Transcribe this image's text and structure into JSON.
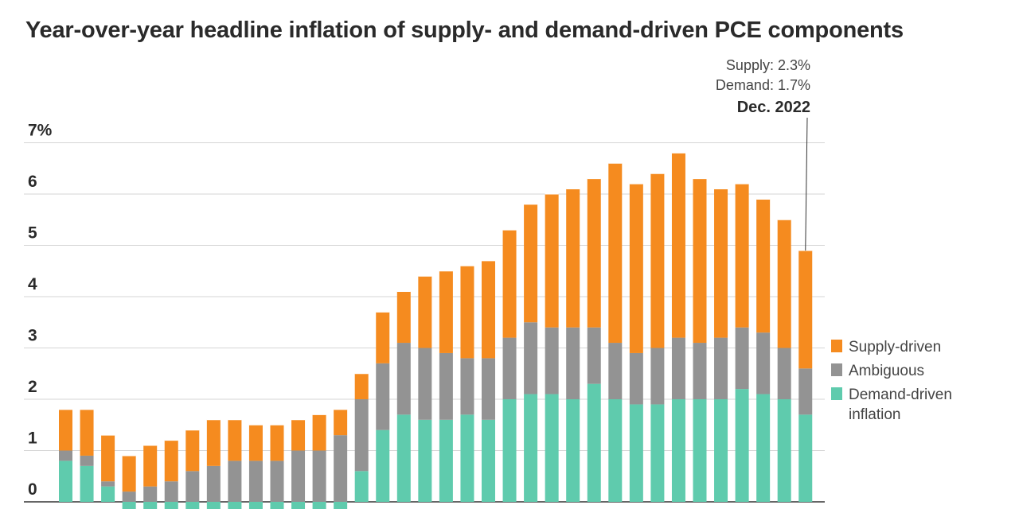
{
  "chart_data": {
    "type": "bar",
    "stacked": true,
    "title": "Year-over-year headline inflation of supply- and demand-driven PCE components",
    "ylim": [
      -0.2,
      7
    ],
    "yticks": [
      0,
      1,
      2,
      3,
      4,
      5,
      6,
      7
    ],
    "ytick_labels": [
      "0",
      "1",
      "2",
      "3",
      "4",
      "5",
      "6",
      "7%"
    ],
    "grid": true,
    "legend_position": "right",
    "series": [
      {
        "name": "Demand-driven inflation",
        "legend_label": [
          "Demand-driven",
          "inflation"
        ],
        "color": "#5fcbad",
        "values": [
          0.8,
          0.7,
          0.3,
          -0.2,
          -0.2,
          -0.2,
          -0.2,
          -0.2,
          -0.2,
          -0.2,
          -0.2,
          -0.2,
          -0.2,
          -0.2,
          0.6,
          1.4,
          1.7,
          1.6,
          1.6,
          1.7,
          1.6,
          2.0,
          2.1,
          2.1,
          2.0,
          2.3,
          2.0,
          1.9,
          1.9,
          2.0,
          2.0,
          2.0,
          2.2,
          2.1,
          2.0,
          1.7
        ]
      },
      {
        "name": "Ambiguous",
        "color": "#939393",
        "values": [
          0.2,
          0.2,
          0.1,
          0.2,
          0.3,
          0.4,
          0.6,
          0.7,
          0.8,
          0.8,
          0.8,
          1.0,
          1.0,
          1.3,
          1.4,
          1.3,
          1.4,
          1.4,
          1.3,
          1.1,
          1.2,
          1.2,
          1.4,
          1.3,
          1.4,
          1.1,
          1.1,
          1.0,
          1.1,
          1.2,
          1.1,
          1.2,
          1.2,
          1.2,
          1.0,
          0.9
        ]
      },
      {
        "name": "Supply-driven",
        "color": "#f58b1f",
        "values": [
          0.8,
          0.9,
          0.9,
          0.7,
          0.8,
          0.8,
          0.8,
          0.9,
          0.8,
          0.7,
          0.7,
          0.6,
          0.7,
          0.5,
          0.5,
          1.0,
          1.0,
          1.4,
          1.6,
          1.8,
          1.9,
          2.1,
          2.3,
          2.6,
          2.7,
          2.9,
          3.5,
          3.3,
          3.4,
          3.6,
          3.2,
          2.9,
          2.8,
          2.6,
          2.5,
          2.3
        ]
      }
    ],
    "annotation": {
      "date": "Dec. 2022",
      "lines": [
        "Supply: 2.3%",
        "Demand: 1.7%"
      ]
    }
  }
}
